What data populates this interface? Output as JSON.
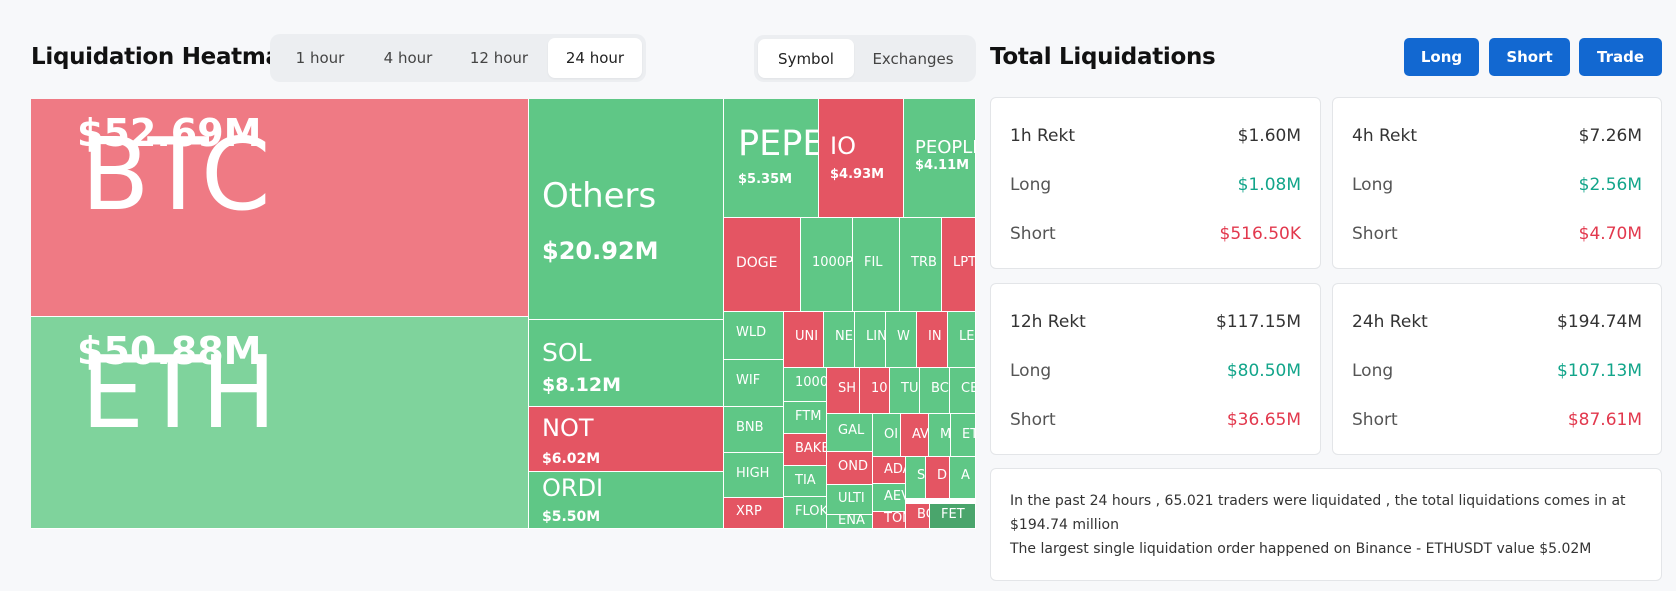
{
  "heatmap": {
    "title": "Liquidation Heatmap",
    "timeframes": [
      "1 hour",
      "4 hour",
      "12 hour",
      "24 hour"
    ],
    "active_timeframe": "24 hour",
    "views": [
      "Symbol",
      "Exchanges"
    ],
    "active_view": "Symbol",
    "colors": {
      "long_liq": "#5fc786",
      "short_liq": "#e45563",
      "btc": "#ef7a84",
      "eth": "#7fd39c"
    },
    "cells": [
      {
        "sym": "BTC",
        "val": "$52.69M",
        "side": "short"
      },
      {
        "sym": "ETH",
        "val": "$50.88M",
        "side": "long"
      },
      {
        "sym": "Others",
        "val": "$20.92M",
        "side": "long"
      },
      {
        "sym": "SOL",
        "val": "$8.12M",
        "side": "long"
      },
      {
        "sym": "NOT",
        "val": "$6.02M",
        "side": "short"
      },
      {
        "sym": "ORDI",
        "val": "$5.50M",
        "side": "long"
      },
      {
        "sym": "PEPE",
        "val": "$5.35M",
        "side": "long"
      },
      {
        "sym": "IO",
        "val": "$4.93M",
        "side": "short"
      },
      {
        "sym": "PEOPLE",
        "val": "$4.11M",
        "side": "long"
      },
      {
        "sym": "DOGE",
        "val": "",
        "side": "short"
      },
      {
        "sym": "1000P",
        "val": "",
        "side": "long"
      },
      {
        "sym": "FIL",
        "val": "",
        "side": "long"
      },
      {
        "sym": "TRB",
        "val": "",
        "side": "long"
      },
      {
        "sym": "LPT",
        "val": "",
        "side": "short"
      },
      {
        "sym": "WLD",
        "val": "",
        "side": "long"
      },
      {
        "sym": "UNI",
        "val": "",
        "side": "short"
      },
      {
        "sym": "NE",
        "val": "",
        "side": "long"
      },
      {
        "sym": "LIN",
        "val": "",
        "side": "long"
      },
      {
        "sym": "W",
        "val": "",
        "side": "long"
      },
      {
        "sym": "IN",
        "val": "",
        "side": "short"
      },
      {
        "sym": "LE",
        "val": "",
        "side": "long"
      },
      {
        "sym": "WIF",
        "val": "",
        "side": "long"
      },
      {
        "sym": "1000",
        "val": "",
        "side": "long"
      },
      {
        "sym": "SH",
        "val": "",
        "side": "short"
      },
      {
        "sym": "10",
        "val": "",
        "side": "short"
      },
      {
        "sym": "TU",
        "val": "",
        "side": "long"
      },
      {
        "sym": "BC",
        "val": "",
        "side": "long"
      },
      {
        "sym": "CE",
        "val": "",
        "side": "long"
      },
      {
        "sym": "BNB",
        "val": "",
        "side": "long"
      },
      {
        "sym": "FTM",
        "val": "",
        "side": "long"
      },
      {
        "sym": "GAL",
        "val": "",
        "side": "long"
      },
      {
        "sym": "OI",
        "val": "",
        "side": "long"
      },
      {
        "sym": "AV",
        "val": "",
        "side": "short"
      },
      {
        "sym": "M",
        "val": "",
        "side": "long"
      },
      {
        "sym": "ET",
        "val": "",
        "side": "long"
      },
      {
        "sym": "BAKE",
        "val": "",
        "side": "short"
      },
      {
        "sym": "HIGH",
        "val": "",
        "side": "long"
      },
      {
        "sym": "OND",
        "val": "",
        "side": "short"
      },
      {
        "sym": "ADA",
        "val": "",
        "side": "short"
      },
      {
        "sym": "S",
        "val": "",
        "side": "long"
      },
      {
        "sym": "D",
        "val": "",
        "side": "short"
      },
      {
        "sym": "A",
        "val": "",
        "side": "long"
      },
      {
        "sym": "TIA",
        "val": "",
        "side": "long"
      },
      {
        "sym": "ULTI",
        "val": "",
        "side": "long"
      },
      {
        "sym": "AEV",
        "val": "",
        "side": "long"
      },
      {
        "sym": "XRP",
        "val": "",
        "side": "short"
      },
      {
        "sym": "FLOK",
        "val": "",
        "side": "long"
      },
      {
        "sym": "ENA",
        "val": "",
        "side": "long"
      },
      {
        "sym": "TON",
        "val": "",
        "side": "short"
      },
      {
        "sym": "BC",
        "val": "",
        "side": "short"
      },
      {
        "sym": "FET",
        "val": "",
        "side": "long-dark"
      }
    ]
  },
  "totals": {
    "title": "Total Liquidations",
    "buttons": {
      "long": "Long",
      "short": "Short",
      "trade": "Trade"
    },
    "long_label": "Long",
    "short_label": "Short",
    "cards": [
      {
        "label": "1h Rekt",
        "total": "$1.60M",
        "long": "$1.08M",
        "short": "$516.50K"
      },
      {
        "label": "4h Rekt",
        "total": "$7.26M",
        "long": "$2.56M",
        "short": "$4.70M"
      },
      {
        "label": "12h Rekt",
        "total": "$117.15M",
        "long": "$80.50M",
        "short": "$36.65M"
      },
      {
        "label": "24h Rekt",
        "total": "$194.74M",
        "long": "$107.13M",
        "short": "$87.61M"
      }
    ],
    "summary_line1": "In the past 24 hours , 65.021 traders were liquidated , the total liquidations comes in at $194.74 million",
    "summary_line2": "The largest single liquidation order happened on Binance - ETHUSDT value $5.02M"
  }
}
